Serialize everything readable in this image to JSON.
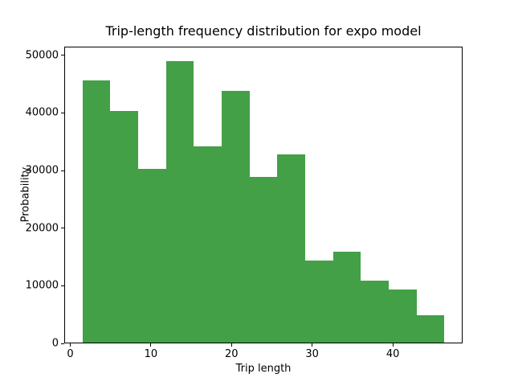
{
  "chart_data": {
    "type": "bar",
    "subtype": "histogram",
    "title": "Trip-length frequency distribution for expo model",
    "xlabel": "Trip length",
    "ylabel": "Probability",
    "bar_color": "#43a047",
    "axis_color": "#000000",
    "text_color": "#000000",
    "background_color": "#ffffff",
    "grid": false,
    "legend": "none",
    "bin_edges": [
      1.5,
      4.95,
      8.41,
      11.86,
      15.32,
      18.77,
      22.23,
      25.68,
      29.14,
      32.59,
      36.05,
      39.5,
      42.96,
      46.41
    ],
    "values": [
      45650,
      40400,
      30350,
      49050,
      34200,
      43800,
      28950,
      32800,
      14350,
      15950,
      10900,
      9350,
      4850
    ],
    "xlim": [
      -0.75,
      48.66
    ],
    "ylim": [
      0,
      51500
    ],
    "x_ticks": [
      {
        "value": 0,
        "label": "0"
      },
      {
        "value": 10,
        "label": "10"
      },
      {
        "value": 20,
        "label": "20"
      },
      {
        "value": 30,
        "label": "30"
      },
      {
        "value": 40,
        "label": "40"
      }
    ],
    "y_ticks": [
      {
        "value": 0,
        "label": "0"
      },
      {
        "value": 10000,
        "label": "10000"
      },
      {
        "value": 20000,
        "label": "20000"
      },
      {
        "value": 30000,
        "label": "30000"
      },
      {
        "value": 40000,
        "label": "40000"
      },
      {
        "value": 50000,
        "label": "50000"
      }
    ]
  }
}
